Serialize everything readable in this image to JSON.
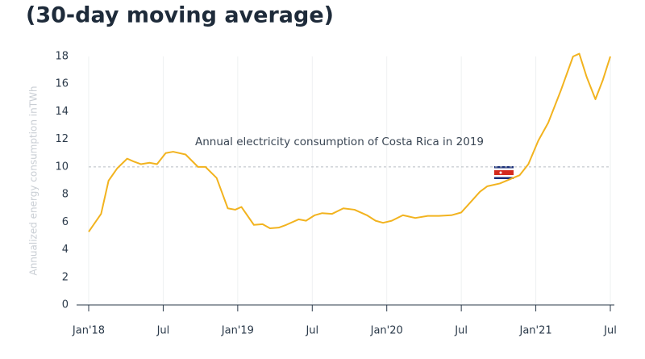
{
  "chart_data": {
    "type": "line",
    "title": "(30-day moving average)",
    "y_label": "Annualized energy consumption inTWh",
    "x": [
      0,
      1,
      1.6,
      2.3,
      3.1,
      3.6,
      4.2,
      4.9,
      5.5,
      6.2,
      6.8,
      7.8,
      8.8,
      9.4,
      10.3,
      11.2,
      11.8,
      12.3,
      13.3,
      14,
      14.6,
      15.3,
      15.9,
      16.9,
      17.5,
      18.2,
      18.8,
      19.6,
      20.5,
      21.4,
      22.4,
      23.1,
      23.7,
      24.4,
      25.3,
      26.3,
      27.3,
      28.2,
      29.2,
      30,
      30.8,
      31.5,
      32.1,
      33.1,
      33.9,
      34.7,
      35.4,
      36.2,
      37,
      38,
      39,
      39.5,
      40.1,
      40.8,
      41.4,
      42
    ],
    "series": [
      {
        "name": "Annualized energy consumption",
        "color": "#f2b31f",
        "values": [
          5.3,
          6.6,
          9.0,
          9.9,
          10.6,
          10.4,
          10.2,
          10.3,
          10.2,
          11.0,
          11.1,
          10.9,
          10.0,
          10.0,
          9.2,
          7.0,
          6.9,
          7.1,
          5.8,
          5.85,
          5.55,
          5.6,
          5.8,
          6.2,
          6.1,
          6.5,
          6.65,
          6.6,
          7.0,
          6.9,
          6.5,
          6.1,
          5.95,
          6.1,
          6.5,
          6.3,
          6.45,
          6.45,
          6.5,
          6.7,
          7.5,
          8.2,
          8.6,
          8.8,
          9.1,
          9.4,
          10.2,
          11.9,
          13.2,
          15.5,
          18.0,
          18.2,
          16.5,
          14.9,
          16.3,
          18.0
        ]
      }
    ],
    "xlim": [
      0,
      42
    ],
    "xticks": [
      {
        "value": 0,
        "label": "Jan'18"
      },
      {
        "value": 6,
        "label": "Jul"
      },
      {
        "value": 12,
        "label": "Jan'19"
      },
      {
        "value": 18,
        "label": "Jul"
      },
      {
        "value": 24,
        "label": "Jan'20"
      },
      {
        "value": 30,
        "label": "Jul"
      },
      {
        "value": 36,
        "label": "Jan'21"
      },
      {
        "value": 42,
        "label": "Jul"
      }
    ],
    "ylim": [
      0,
      18
    ],
    "yticks": [
      0,
      2,
      4,
      6,
      8,
      10,
      12,
      14,
      16,
      18
    ],
    "reference_line": {
      "value": 10,
      "label": "Annual electricity consumption of Costa Rica in 2019"
    },
    "grid": true
  }
}
